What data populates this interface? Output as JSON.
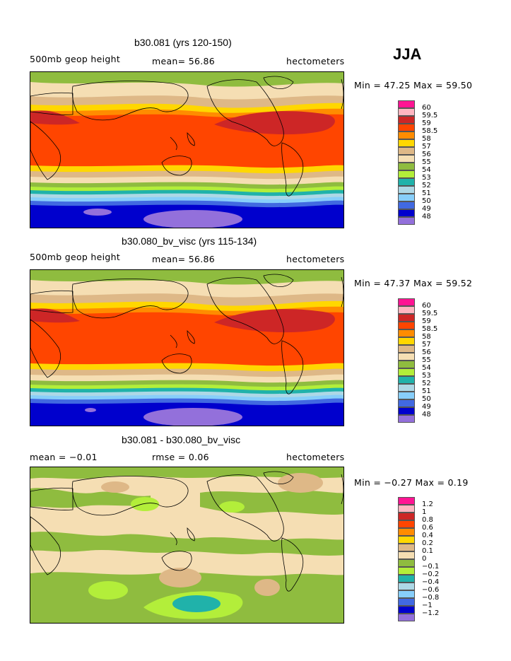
{
  "season": "JJA",
  "panels": [
    {
      "title": "b30.081 (yrs 120-150)",
      "left_label": "500mb geop height",
      "center_label": "mean=  56.86",
      "right_label": "hectometers",
      "minmax": "Min =  47.25 Max =  59.50"
    },
    {
      "title": "b30.080_bv_visc (yrs 115-134)",
      "left_label": "500mb geop height",
      "center_label": "mean=  56.86",
      "right_label": "hectometers",
      "minmax": "Min =  47.37 Max =  59.52"
    },
    {
      "title": "b30.081 - b30.080_bv_visc",
      "left_label": "mean =  −0.01",
      "center_label": "rmse =   0.06",
      "right_label": "hectometers",
      "minmax": "Min =  −0.27 Max =   0.19"
    }
  ],
  "colorbars": [
    {
      "labels": [
        "60",
        "59.5",
        "59",
        "58.5",
        "58",
        "57",
        "56",
        "55",
        "54",
        "53",
        "52",
        "51",
        "50",
        "49",
        "48"
      ],
      "colors": [
        "#ff1493",
        "#ffb6c1",
        "#cd2626",
        "#ff4500",
        "#ff8c00",
        "#ffd700",
        "#deb887",
        "#f5deb3",
        "#8fbc3f",
        "#b3ee3a",
        "#20b2aa",
        "#add8e6",
        "#87cefa",
        "#4169e1",
        "#0000cd",
        "#9370db"
      ]
    },
    {
      "labels": [
        "60",
        "59.5",
        "59",
        "58.5",
        "58",
        "57",
        "56",
        "55",
        "54",
        "53",
        "52",
        "51",
        "50",
        "49",
        "48"
      ],
      "colors": [
        "#ff1493",
        "#ffb6c1",
        "#cd2626",
        "#ff4500",
        "#ff8c00",
        "#ffd700",
        "#deb887",
        "#f5deb3",
        "#8fbc3f",
        "#b3ee3a",
        "#20b2aa",
        "#add8e6",
        "#87cefa",
        "#4169e1",
        "#0000cd",
        "#9370db"
      ]
    },
    {
      "labels": [
        "1.2",
        "1",
        "0.8",
        "0.6",
        "0.4",
        "0.2",
        "0.1",
        "0",
        "−0.1",
        "−0.2",
        "−0.4",
        "−0.6",
        "−0.8",
        "−1",
        "−1.2"
      ],
      "colors": [
        "#ff1493",
        "#ffb6c1",
        "#cd2626",
        "#ff4500",
        "#ff8c00",
        "#ffd700",
        "#deb887",
        "#f5deb3",
        "#8fbc3f",
        "#b3ee3a",
        "#20b2aa",
        "#add8e6",
        "#87cefa",
        "#4169e1",
        "#0000cd",
        "#9370db"
      ]
    }
  ]
}
